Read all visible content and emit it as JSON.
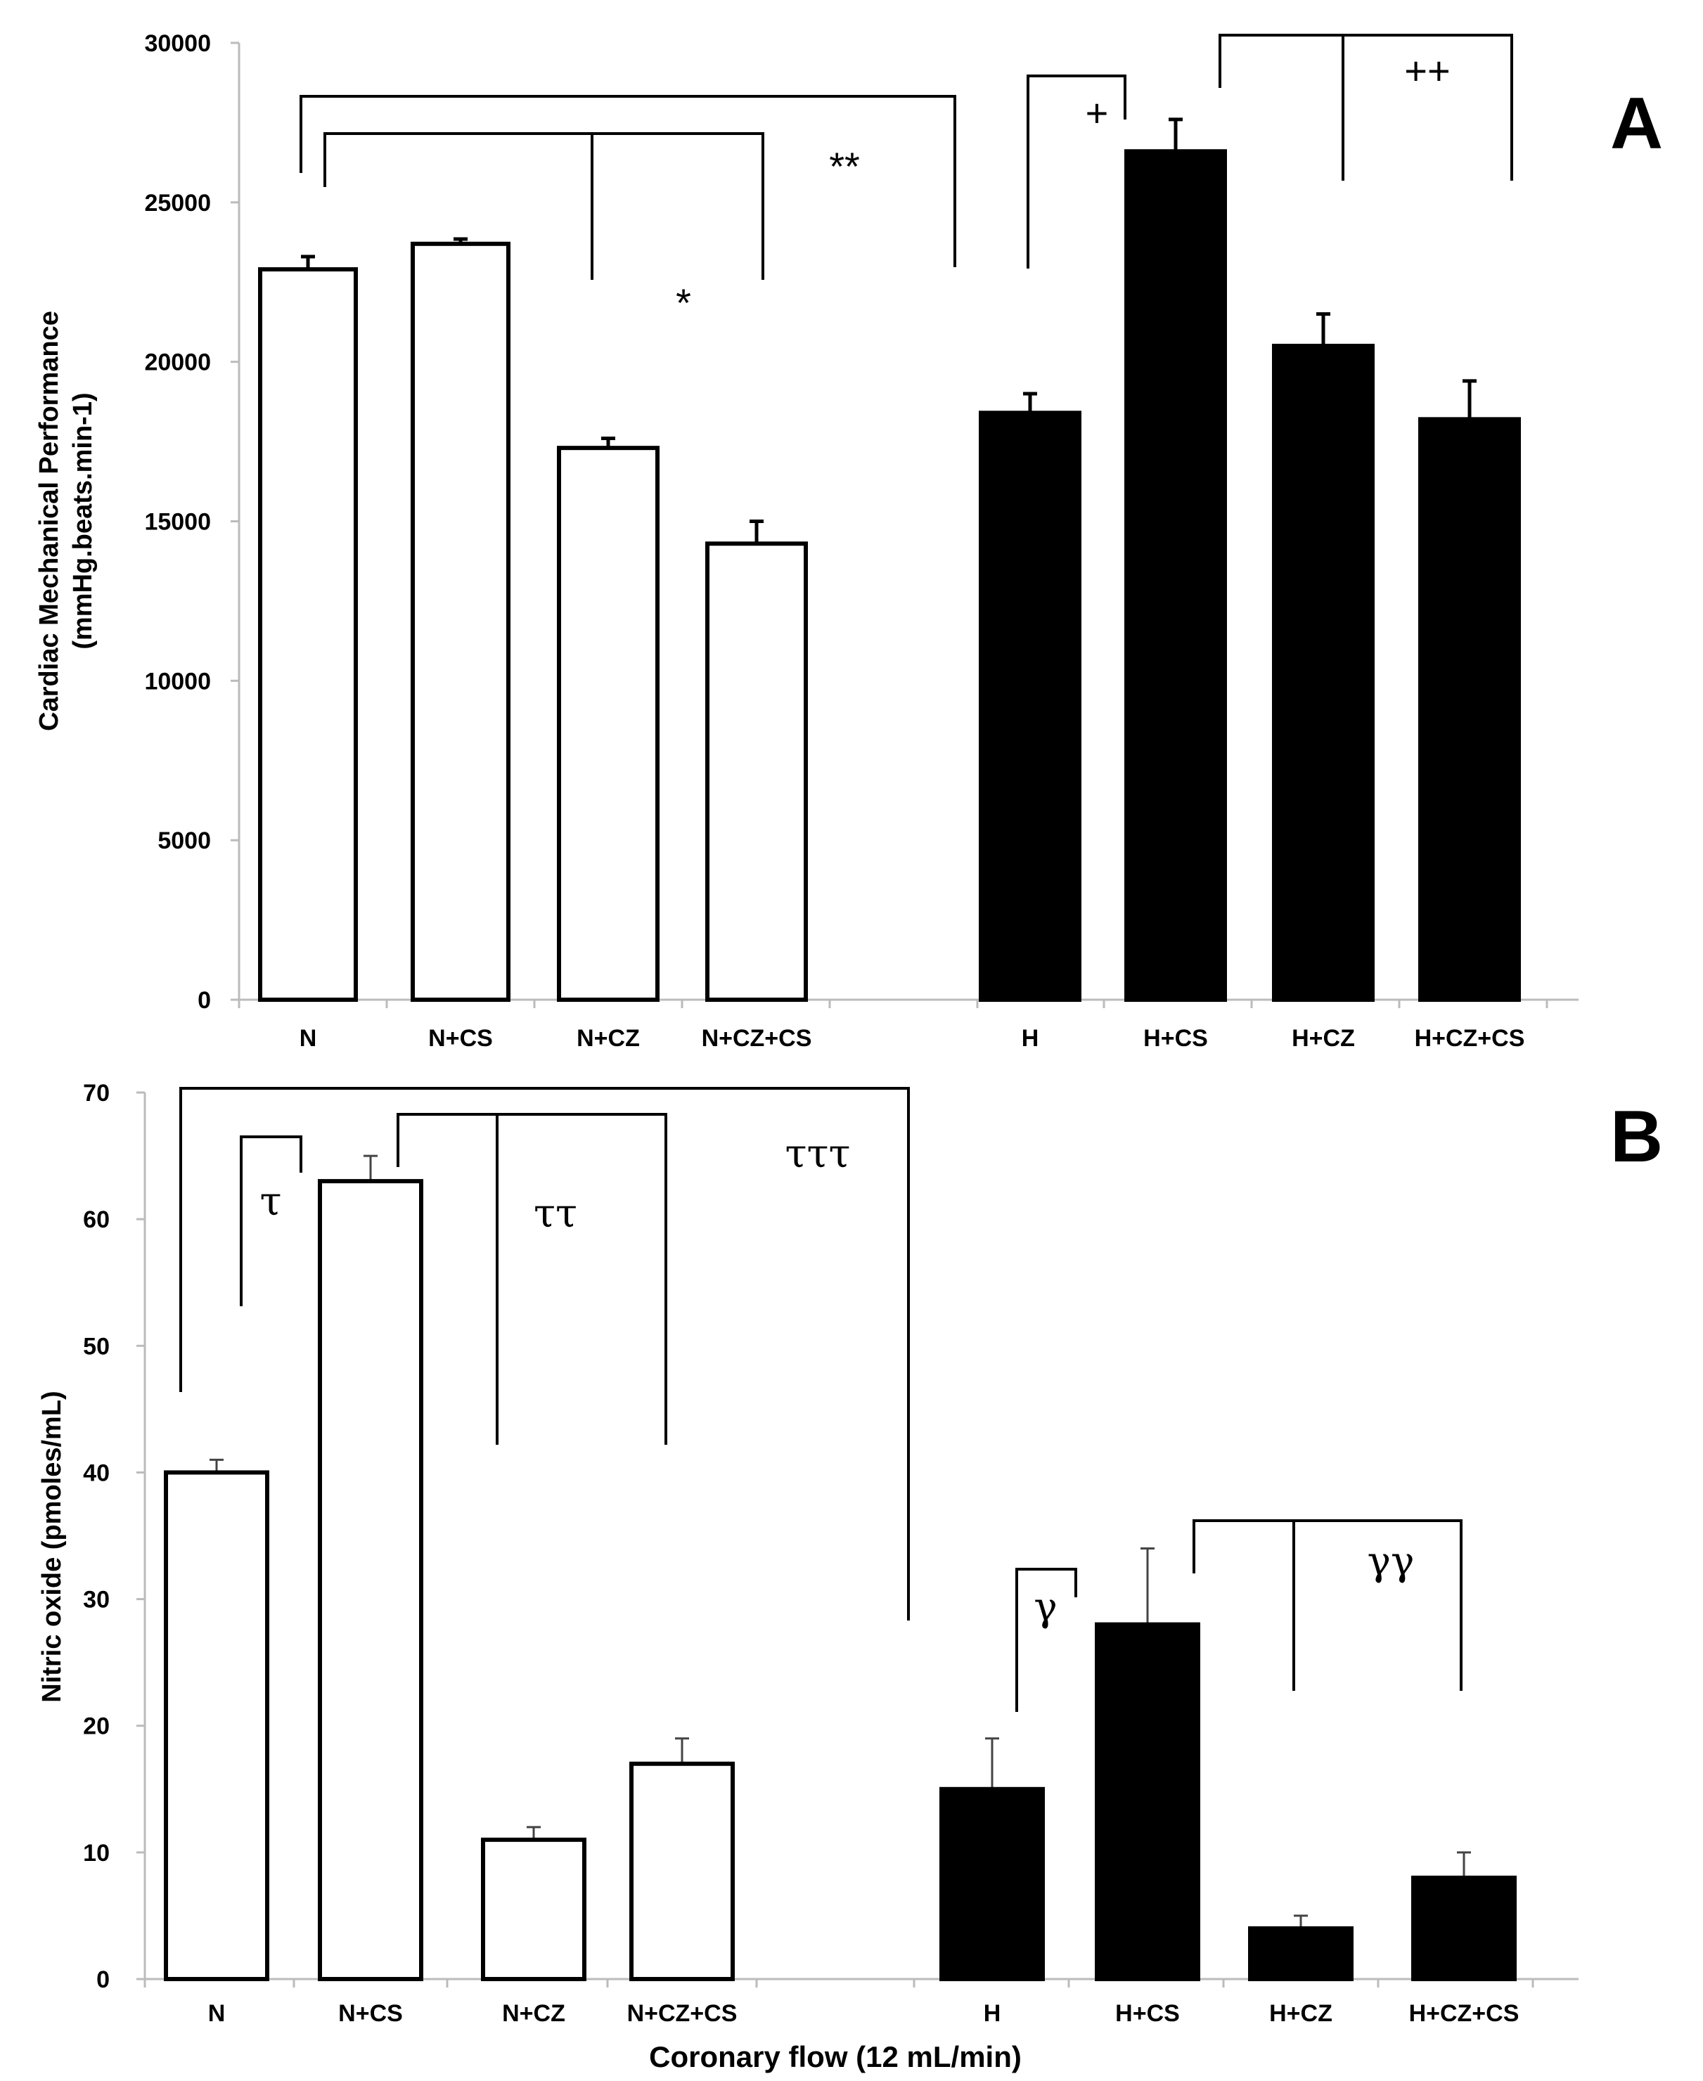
{
  "chart_data": [
    {
      "type": "bar",
      "panel_label": "A",
      "ylabel_line1": "Cardiac Mechanical Performance",
      "ylabel_line2": "(mmHg.beats.min-1)",
      "xlabel": "",
      "ylim": [
        0,
        30000
      ],
      "yticks": [
        0,
        5000,
        10000,
        15000,
        20000,
        25000,
        30000
      ],
      "categories": [
        "N",
        "N+CS",
        "N+CZ",
        "N+CZ+CS",
        "H",
        "H+CS",
        "H+CZ",
        "H+CZ+CS"
      ],
      "values": [
        22900,
        23700,
        17300,
        14300,
        18400,
        26600,
        20500,
        18200
      ],
      "errors": [
        400,
        150,
        300,
        700,
        600,
        1000,
        1000,
        1200
      ],
      "fill": [
        "white",
        "white",
        "white",
        "white",
        "black",
        "black",
        "black",
        "black"
      ],
      "annotations": [
        "**",
        "*",
        "+",
        "++"
      ]
    },
    {
      "type": "bar",
      "panel_label": "B",
      "ylabel": "Nitric oxide (pmoles/mL)",
      "xlabel": "Coronary flow (12 mL/min)",
      "ylim": [
        0,
        70
      ],
      "yticks": [
        0,
        10,
        20,
        30,
        40,
        50,
        60,
        70
      ],
      "categories": [
        "N",
        "N+CS",
        "N+CZ",
        "N+CZ+CS",
        "H",
        "H+CS",
        "H+CZ",
        "H+CZ+CS"
      ],
      "values": [
        40,
        63,
        11,
        17,
        15,
        28,
        4,
        8
      ],
      "errors": [
        1,
        2,
        1,
        2,
        4,
        6,
        1,
        2
      ],
      "fill": [
        "white",
        "white",
        "white",
        "white",
        "black",
        "black",
        "black",
        "black"
      ],
      "annotations": [
        "τττ",
        "τ",
        "ττ",
        "γ",
        "γγ"
      ]
    }
  ],
  "colors": {
    "white_bar": "#ffffff",
    "black_bar": "#000000",
    "axis": "#bbbbbb",
    "ink": "#000000"
  }
}
